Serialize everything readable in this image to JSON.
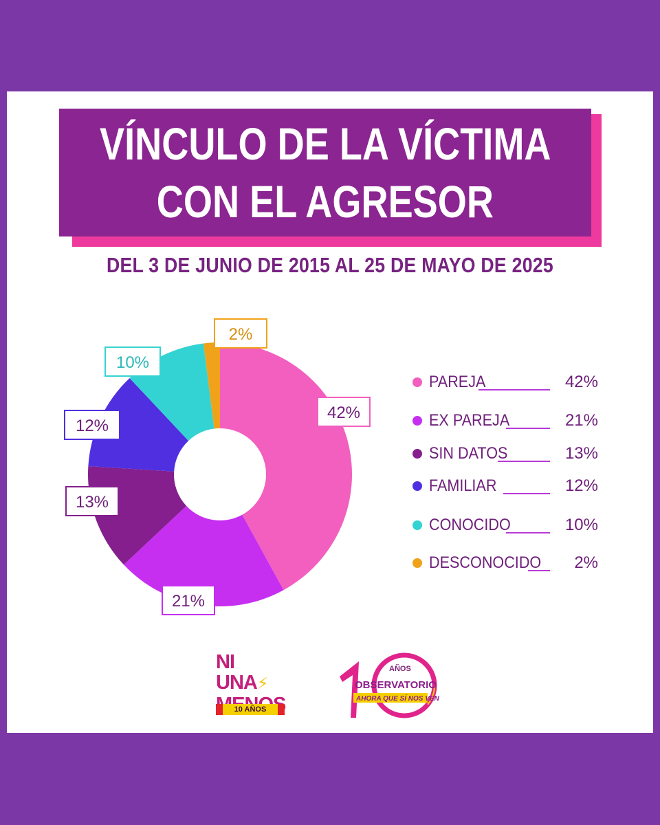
{
  "title": {
    "line1": "VÍNCULO DE LA VÍCTIMA",
    "line2": "CON EL AGRESOR"
  },
  "subtitle": "DEL 3 DE JUNIO DE 2015 AL 25 DE MAYO DE 2025",
  "chart_data": {
    "type": "pie",
    "categories": [
      "PAREJA",
      "EX PAREJA",
      "SIN DATOS",
      "FAMILIAR",
      "CONOCIDO",
      "DESCONOCIDO"
    ],
    "values": [
      42,
      21,
      13,
      12,
      10,
      2
    ],
    "value_labels": [
      "42%",
      "21%",
      "13%",
      "12%",
      "10%",
      "2%"
    ],
    "colors": [
      "#f25fbf",
      "#c62ff0",
      "#841f8d",
      "#4f2fe0",
      "#34d3d3",
      "#f0a21a"
    ],
    "legend_position": "right"
  },
  "logos": {
    "left": {
      "line1": "NI UNA",
      "bolt": "⚡",
      "line2": "MENOS",
      "tag": "10 AÑOS"
    },
    "right": {
      "top": "AÑOS",
      "middle": "OBSERVATORIO",
      "bottom": "AHORA QUE SÍ NOS VEN"
    }
  }
}
